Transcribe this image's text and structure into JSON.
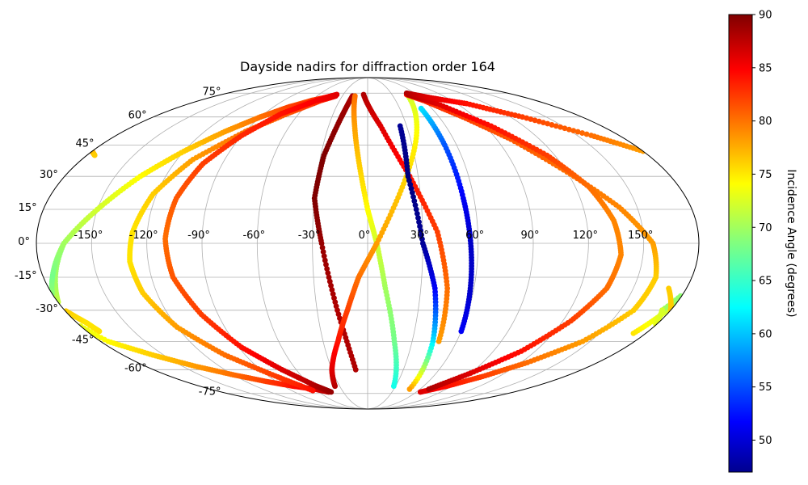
{
  "chart_data": {
    "type": "scatter",
    "projection": "mollweide",
    "title": "Dayside nadirs for diffraction order 164",
    "x_tick_labels": [
      "-150°",
      "-120°",
      "-90°",
      "-60°",
      "-30°",
      "0°",
      "30°",
      "60°",
      "90°",
      "120°",
      "150°"
    ],
    "y_tick_labels": [
      "-75°",
      "-60°",
      "-45°",
      "-30°",
      "-15°",
      "0°",
      "15°",
      "30°",
      "45°",
      "60°",
      "75°"
    ],
    "x_ticks_deg": [
      -150,
      -120,
      -90,
      -60,
      -30,
      0,
      30,
      60,
      90,
      120,
      150
    ],
    "y_ticks_deg": [
      -75,
      -60,
      -45,
      -30,
      -15,
      0,
      15,
      30,
      45,
      60,
      75
    ],
    "grid": true,
    "colorbar": {
      "label": "Incidence Angle (degrees)",
      "colormap": "jet",
      "range": [
        47,
        90
      ],
      "ticks": [
        50,
        55,
        60,
        65,
        70,
        75,
        80,
        85,
        90
      ]
    },
    "series": [
      {
        "lon": [
          -188,
          -182,
          -175,
          -165,
          -150,
          -135,
          -120,
          -105,
          -90,
          -75,
          -60,
          -48,
          -38
        ],
        "lat": [
          -41,
          -30,
          -18,
          0,
          15,
          30,
          42,
          52,
          60,
          66,
          70,
          72,
          74
        ],
        "incidence": [
          75,
          72,
          70,
          69,
          70,
          72,
          74,
          76,
          78,
          80,
          82,
          84,
          86
        ]
      },
      {
        "lon": [
          -38,
          -45,
          -52,
          -75,
          -90,
          -105,
          -120,
          -135,
          -150,
          -165,
          -175,
          -185,
          -185,
          -175,
          -158,
          -140,
          -120,
          -100,
          -80,
          -60,
          -48
        ],
        "lat": [
          74,
          72,
          70,
          66,
          60,
          52,
          42,
          30,
          15,
          0,
          -15,
          -30,
          -30,
          -45,
          -52,
          -58,
          -63,
          -67,
          -70,
          -72,
          -74
        ],
        "incidence": [
          86,
          85,
          84,
          82,
          80,
          78,
          76,
          74,
          72,
          70,
          68,
          70,
          72,
          74,
          76,
          78,
          80,
          82,
          84,
          86,
          88
        ]
      },
      {
        "lon": [
          -38,
          -50,
          -70,
          -90,
          -110,
          -122,
          -128,
          -130,
          -128,
          -120,
          -105,
          -85,
          -65
        ],
        "lat": [
          73,
          70,
          62,
          52,
          38,
          22,
          5,
          -8,
          -22,
          -38,
          -52,
          -63,
          -73
        ],
        "incidence": [
          84,
          83,
          81,
          80,
          78,
          76,
          75,
          75,
          76,
          78,
          80,
          82,
          84
        ]
      },
      {
        "lon": [
          -38,
          -55,
          -75,
          -90,
          -102,
          -108,
          -110,
          -108,
          -100,
          -88,
          -72,
          -55,
          -45
        ],
        "lat": [
          73,
          70,
          62,
          50,
          36,
          20,
          2,
          -15,
          -32,
          -48,
          -60,
          -70,
          -74
        ],
        "incidence": [
          86,
          85,
          84,
          83,
          82,
          81,
          80,
          81,
          82,
          84,
          86,
          88,
          89
        ]
      },
      {
        "lon": [
          -18,
          -22,
          -28,
          -30,
          -25,
          -18,
          -10
        ],
        "lat": [
          73,
          60,
          40,
          20,
          0,
          -30,
          -60
        ],
        "incidence": [
          88,
          89,
          90,
          90,
          89,
          88,
          88
        ]
      },
      {
        "lon": [
          -15,
          -10,
          -5,
          0,
          5,
          10,
          18,
          28
        ],
        "lat": [
          73,
          55,
          35,
          15,
          0,
          -20,
          -45,
          -70
        ],
        "incidence": [
          80,
          78,
          76,
          74,
          72,
          70,
          68,
          64
        ]
      },
      {
        "lon": [
          -5,
          10,
          25,
          38,
          45,
          48
        ],
        "lat": [
          74,
          55,
          30,
          5,
          -20,
          -45
        ],
        "incidence": [
          88,
          86,
          84,
          82,
          80,
          78
        ]
      },
      {
        "lon": [
          -35,
          -30,
          -20,
          -12,
          -5,
          5,
          20,
          35,
          48
        ],
        "lat": [
          -70,
          -60,
          -45,
          -30,
          -15,
          0,
          25,
          50,
          73
        ],
        "incidence": [
          88,
          86,
          84,
          82,
          80,
          78,
          76,
          74,
          72
        ]
      },
      {
        "lon": [
          25,
          24,
          30,
          38,
          44,
          48
        ],
        "lat": [
          55,
          30,
          0,
          -20,
          -45,
          -72
        ],
        "incidence": [
          48,
          47,
          48,
          52,
          62,
          78
        ]
      },
      {
        "lon": [
          50,
          52,
          54,
          56,
          58,
          60
        ],
        "lat": [
          65,
          45,
          20,
          0,
          -20,
          -40
        ],
        "incidence": [
          62,
          56,
          52,
          50,
          50,
          52
        ]
      },
      {
        "lon": [
          48,
          60,
          80,
          100,
          120,
          140,
          155,
          160,
          158,
          145,
          125,
          105,
          85,
          65
        ],
        "lat": [
          74,
          70,
          60,
          48,
          32,
          16,
          0,
          -15,
          -30,
          -45,
          -56,
          -64,
          -70,
          -74
        ],
        "incidence": [
          84,
          83,
          82,
          81,
          80,
          79,
          78,
          76,
          76,
          78,
          80,
          82,
          84,
          86
        ]
      },
      {
        "lon": [
          50,
          70,
          95,
          115,
          128,
          135,
          138,
          135,
          125,
          110,
          90,
          70
        ],
        "lat": [
          74,
          68,
          55,
          40,
          25,
          10,
          -5,
          -20,
          -35,
          -50,
          -62,
          -72
        ],
        "incidence": [
          88,
          86,
          84,
          82,
          80,
          79,
          79,
          80,
          82,
          84,
          86,
          88
        ]
      },
      {
        "lon": [
          50,
          70,
          100,
          130,
          160,
          180,
          185
        ],
        "lat": [
          75,
          72,
          68,
          60,
          50,
          42,
          40
        ],
        "incidence": [
          88,
          86,
          84,
          82,
          80,
          78,
          76
        ]
      },
      {
        "lon": [
          170,
          180,
          186,
          188
        ],
        "lat": [
          -20,
          -30,
          -36,
          -40
        ],
        "incidence": [
          76,
          76,
          75,
          75
        ]
      }
    ]
  }
}
